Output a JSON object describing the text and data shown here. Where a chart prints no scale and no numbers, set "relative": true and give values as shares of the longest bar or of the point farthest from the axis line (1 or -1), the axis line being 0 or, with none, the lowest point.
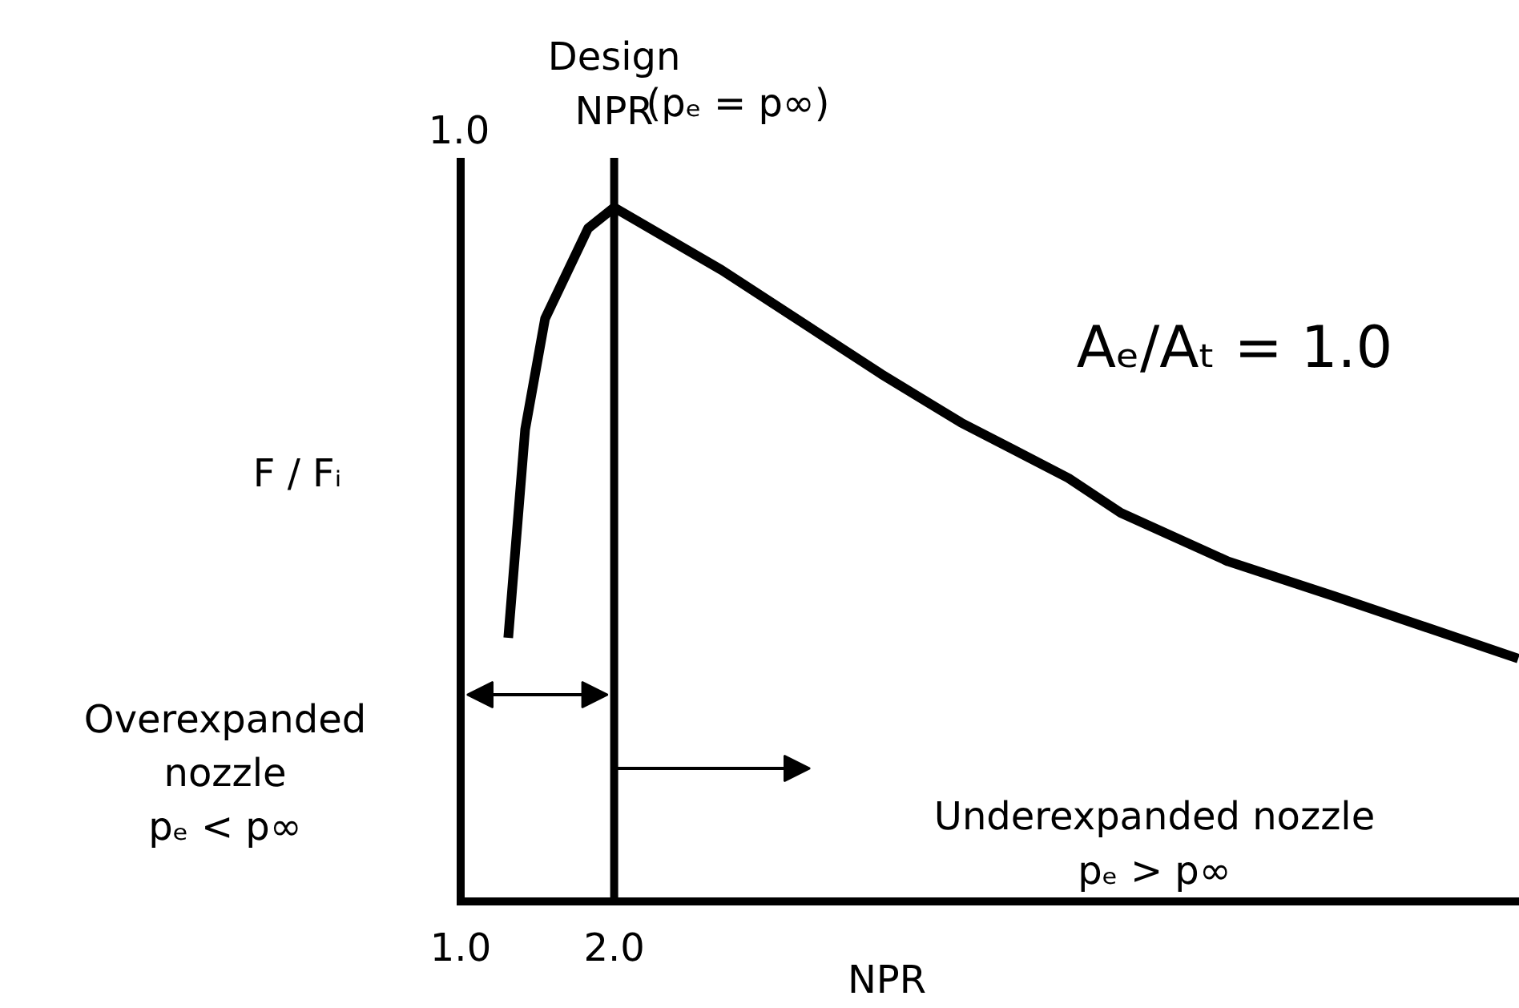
{
  "chart_data": {
    "type": "line",
    "relative": true,
    "xlabel": "NPR",
    "ylabel": "F / Fᵢ",
    "x": [
      1.31,
      1.42,
      1.55,
      1.83,
      2.0,
      2.7,
      3.74,
      4.26,
      4.96,
      5.3,
      6.0,
      6.69,
      7.89
    ],
    "series": [
      {
        "color": "#000000",
        "values": [
          0.38,
          0.68,
          0.84,
          0.97,
          1.0,
          0.91,
          0.76,
          0.69,
          0.61,
          0.56,
          0.49,
          0.44,
          0.35
        ]
      }
    ],
    "xlim": [
      1.0,
      7.9
    ],
    "xticks": [
      {
        "value": 1.0,
        "label": "1.0"
      },
      {
        "value": 2.0,
        "label": "2.0"
      }
    ],
    "ref_lines": [
      {
        "axis": "x",
        "value": 2.0,
        "label": "Design\nNPR",
        "color": "#000000"
      }
    ],
    "annotations": [
      "1.0",
      "(pₑ = p∞)",
      "Aₑ/Aₜ = 1.0",
      "Overexpanded\nnozzle\npₑ < p∞",
      "Underexpanded nozzle\npₑ > p∞"
    ],
    "marker": "none",
    "line_style": "solid"
  }
}
